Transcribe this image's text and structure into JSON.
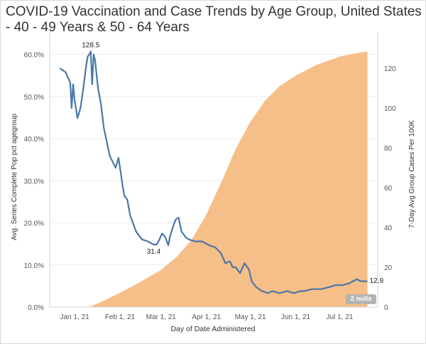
{
  "chart_data": {
    "type": "line+area",
    "title": "COVID-19 Vaccination and Case Trends by Age Group, United States - 40 - 49 Years & 50 - 64 Years",
    "xlabel": "Day of Date Administered",
    "x_ticks": [
      "Jan 1, 21",
      "Feb 1, 21",
      "Mar 1, 21",
      "Apr 1, 21",
      "May 1, 21",
      "Jun 1, 21",
      "Jul 1, 21"
    ],
    "x_range_days": [
      -17,
      207
    ],
    "left_axis": {
      "label": "Avg. Series Complete Pop pct agegroup",
      "range": [
        0,
        64.5
      ],
      "ticks": [
        "0.0%",
        "10.0%",
        "20.0%",
        "30.0%",
        "40.0%",
        "50.0%",
        "60.0%"
      ],
      "tick_values": [
        0,
        10,
        20,
        30,
        40,
        50,
        60
      ]
    },
    "right_axis": {
      "label": "7-Day Avg Group Cases Per 100K",
      "range": [
        0,
        136.5
      ],
      "ticks": [
        "0",
        "20",
        "40",
        "60",
        "80",
        "100",
        "120"
      ],
      "tick_values": [
        0,
        20,
        40,
        60,
        80,
        100,
        120
      ]
    },
    "series": [
      {
        "name": "Avg. Series Complete Pop pct agegroup",
        "axis": "left",
        "style": "area",
        "color": "#f5bb82",
        "x_days": [
          -17,
          10,
          20,
          31,
          45,
          59,
          70,
          80,
          90,
          100,
          110,
          120,
          130,
          140,
          151,
          165,
          181,
          195,
          200
        ],
        "values": [
          0,
          0,
          1.5,
          3.4,
          6.0,
          8.8,
          12.0,
          16.0,
          22.0,
          29.5,
          37.5,
          44.0,
          49.0,
          52.5,
          55.0,
          57.5,
          59.5,
          60.5,
          60.7
        ]
      },
      {
        "name": "7-Day Avg Group Cases Per 100K",
        "axis": "right",
        "style": "line",
        "color": "#4a78a8",
        "x_days": [
          -10,
          -6,
          -5,
          -3,
          -2,
          -1,
          0,
          2,
          4,
          6,
          8,
          9,
          10,
          11,
          12,
          13,
          14,
          16,
          18,
          20,
          24,
          28,
          30,
          32,
          33,
          34,
          36,
          38,
          42,
          46,
          50,
          54,
          56,
          58,
          59,
          60,
          62,
          64,
          65,
          67,
          69,
          71,
          73,
          74,
          76,
          78,
          82,
          87,
          92,
          96,
          100,
          103,
          106,
          108,
          110,
          113,
          116,
          119,
          121,
          124,
          128,
          132,
          135,
          140,
          145,
          150,
          154,
          157,
          162,
          168,
          174,
          178,
          183,
          188,
          190,
          193,
          195,
          197,
          200
        ],
        "values": [
          120,
          118,
          116,
          113,
          100,
          112,
          104,
          95,
          100,
          110,
          122,
          126,
          127,
          128.5,
          112,
          127,
          124,
          110,
          102,
          90,
          76,
          70,
          75,
          65,
          60,
          56,
          54,
          46,
          38,
          34,
          33,
          31.4,
          31.4,
          34,
          36,
          37,
          35,
          31,
          35,
          40,
          44,
          45,
          38,
          37,
          35,
          34,
          33,
          33,
          31,
          30,
          27,
          22,
          23,
          20,
          20,
          17,
          22,
          19,
          13,
          10,
          8,
          7,
          8,
          7,
          8,
          7,
          8,
          8,
          9,
          9,
          10,
          11,
          11,
          12,
          13,
          14,
          13,
          13,
          12.9
        ]
      }
    ],
    "annotations": [
      {
        "text": "128.5",
        "x_day": 11,
        "value": 128.5
      },
      {
        "text": "31.4",
        "x_day": 54,
        "value": 31.4
      },
      {
        "text": "12.9",
        "x_day": 200,
        "value": 12.9
      }
    ],
    "null_indicator": "2 nulls"
  }
}
